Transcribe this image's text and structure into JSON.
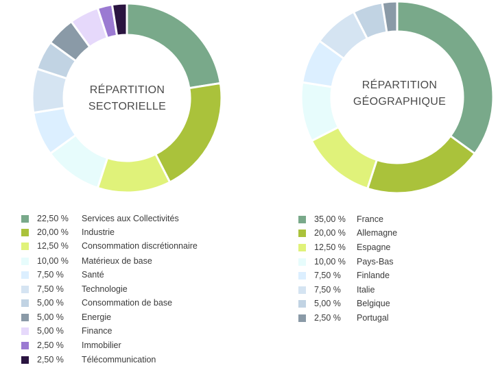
{
  "chart_data": [
    {
      "type": "pie",
      "title": "RÉPARTITION\nSECTORIELLE",
      "title_lines": [
        "RÉPARTITION",
        "SECTORIELLE"
      ],
      "slices": [
        {
          "label": "Services aux Collectivités",
          "value": 22.5,
          "display": "22,50 %",
          "color": "#79a98a"
        },
        {
          "label": "Industrie",
          "value": 20.0,
          "display": "20,00 %",
          "color": "#aac23b"
        },
        {
          "label": "Consommation discrétionnaire",
          "value": 12.5,
          "display": "12,50 %",
          "color": "#e0f27a"
        },
        {
          "label": "Matérieux de base",
          "value": 10.0,
          "display": "10,00 %",
          "color": "#e7fcfc"
        },
        {
          "label": "Santé",
          "value": 7.5,
          "display": "7,50 %",
          "color": "#dcefff"
        },
        {
          "label": "Technologie",
          "value": 7.5,
          "display": "7,50 %",
          "color": "#d5e4f2"
        },
        {
          "label": "Consommation de base",
          "value": 5.0,
          "display": "5,00 %",
          "color": "#c1d3e3"
        },
        {
          "label": "Energie",
          "value": 5.0,
          "display": "5,00 %",
          "color": "#8a9aa7"
        },
        {
          "label": "Finance",
          "value": 5.0,
          "display": "5,00 %",
          "color": "#e6d9fb"
        },
        {
          "label": "Immobilier",
          "value": 2.5,
          "display": "2,50 %",
          "color": "#9b7ad2"
        },
        {
          "label": "Télécommunication",
          "value": 2.5,
          "display": "2,50 %",
          "color": "#2a1440"
        }
      ]
    },
    {
      "type": "pie",
      "title": "RÉPARTITION\nGÉOGRAPHIQUE",
      "title_lines": [
        "RÉPARTITION",
        "GÉOGRAPHIQUE"
      ],
      "slices": [
        {
          "label": "France",
          "value": 35.0,
          "display": "35,00 %",
          "color": "#79a98a"
        },
        {
          "label": "Allemagne",
          "value": 20.0,
          "display": "20,00 %",
          "color": "#aac23b"
        },
        {
          "label": "Espagne",
          "value": 12.5,
          "display": "12,50 %",
          "color": "#e0f27a"
        },
        {
          "label": "Pays-Bas",
          "value": 10.0,
          "display": "10,00 %",
          "color": "#e7fcfc"
        },
        {
          "label": "Finlande",
          "value": 7.5,
          "display": "7,50 %",
          "color": "#dcefff"
        },
        {
          "label": "Italie",
          "value": 7.5,
          "display": "7,50 %",
          "color": "#d5e4f2"
        },
        {
          "label": "Belgique",
          "value": 5.0,
          "display": "5,00 %",
          "color": "#c1d3e3"
        },
        {
          "label": "Portugal",
          "value": 2.5,
          "display": "2,50 %",
          "color": "#8a9aa7"
        }
      ]
    }
  ]
}
